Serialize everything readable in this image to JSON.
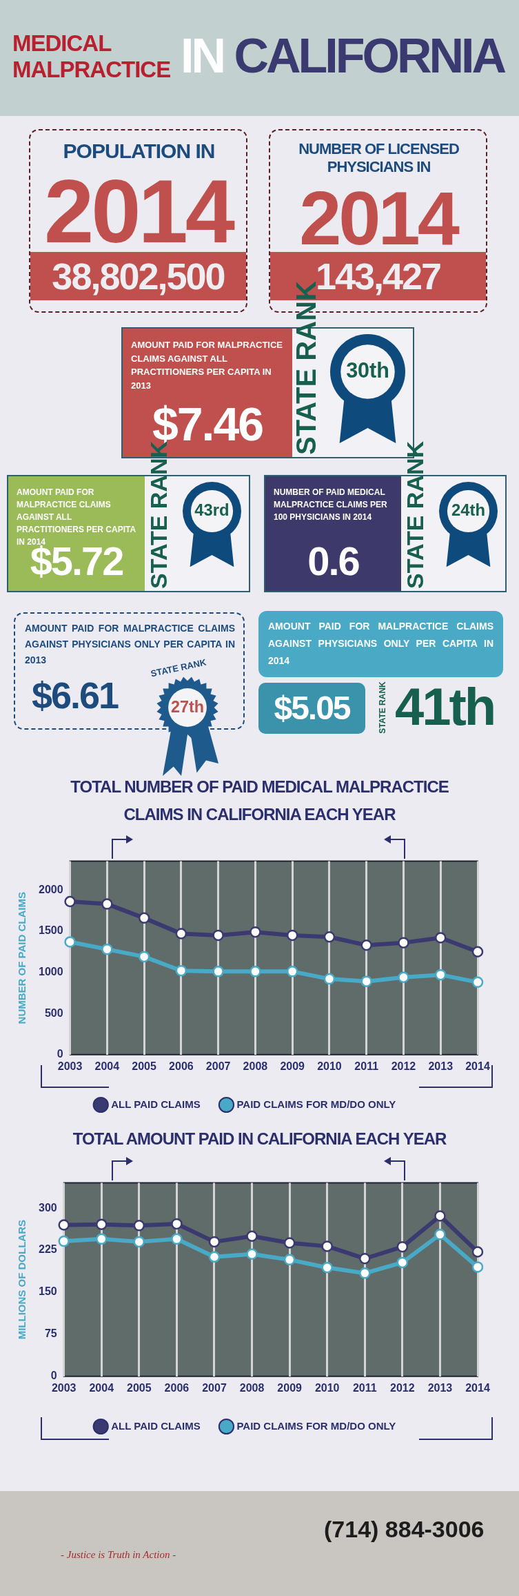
{
  "chart_data": [
    {
      "type": "other",
      "title": "MEDICAL MALPRACTICE IN CALIFORNIA"
    },
    {
      "type": "other",
      "title": "POPULATION IN",
      "subtitle": "2014",
      "annotations": [
        "38,802,500"
      ]
    },
    {
      "type": "other",
      "title": "NUMBER OF LICENSED PHYSICIANS IN",
      "subtitle": "2014",
      "annotations": [
        "143,427"
      ]
    },
    {
      "type": "other",
      "title": "AMOUNT PAID FOR MALPRACTICE CLAIMS AGAINST ALL PRACTITIONERS PER CAPITA IN 2013",
      "annotations": [
        "$7.46",
        "STATE RANK",
        "30th"
      ]
    },
    {
      "type": "other",
      "title": "AMOUNT PAID FOR MALPRACTICE CLAIMS AGAINST ALL PRACTITIONERS PER CAPITA IN 2014",
      "annotations": [
        "$5.72",
        "STATE RANK",
        "43rd"
      ]
    },
    {
      "type": "other",
      "title": "NUMBER OF PAID MEDICAL MALPRACTICE CLAIMS PER 100 PHYSICIANS IN 2014",
      "annotations": [
        "0.6",
        "STATE RANK",
        "24th"
      ]
    },
    {
      "type": "other",
      "title": "AMOUNT PAID FOR MALPRACTICE CLAIMS AGAINST PHYSICIANS ONLY PER CAPITA IN 2013",
      "annotations": [
        "$6.61",
        "STATE RANK",
        "27th"
      ]
    },
    {
      "type": "other",
      "title": "AMOUNT PAID FOR MALPRACTICE CLAIMS AGAINST PHYSICIANS ONLY PER CAPITA IN 2014",
      "annotations": [
        "$5.05",
        "STATE RANK",
        "41th"
      ]
    },
    {
      "type": "line",
      "title": "TOTAL NUMBER OF PAID MEDICAL MALPRACTICE CLAIMS IN CALIFORNIA EACH YEAR",
      "ylabel": "NUMBER OF PAID CLAIMS",
      "categories": [
        "2003",
        "2004",
        "2005",
        "2006",
        "2007",
        "2008",
        "2009",
        "2010",
        "2011",
        "2012",
        "2013",
        "2014"
      ],
      "ylim": [
        0,
        2350
      ],
      "yticks": [
        0,
        500,
        1000,
        1500,
        2000
      ],
      "grid": "x",
      "legend": "bottom",
      "marker": "circle",
      "line_style": "solid",
      "series": [
        {
          "name": "ALL PAID CLAIMS",
          "color": "#3b3a70",
          "values": [
            1860,
            1830,
            1660,
            1470,
            1450,
            1490,
            1450,
            1430,
            1330,
            1360,
            1420,
            1250
          ]
        },
        {
          "name": "PAID CLAIMS FOR MD/DO ONLY",
          "color": "#48aac6",
          "values": [
            1370,
            1280,
            1190,
            1020,
            1010,
            1010,
            1010,
            920,
            890,
            940,
            970,
            880
          ]
        }
      ]
    },
    {
      "type": "line",
      "title": "TOTAL AMOUNT PAID IN CALIFORNIA EACH YEAR",
      "ylabel": "MILLIONS OF DOLLARS",
      "categories": [
        "2003",
        "2004",
        "2005",
        "2006",
        "2007",
        "2008",
        "2009",
        "2010",
        "2011",
        "2012",
        "2013",
        "2014"
      ],
      "ylim": [
        0,
        345
      ],
      "yticks": [
        0,
        75,
        150,
        225,
        300
      ],
      "grid": "x",
      "legend": "bottom",
      "marker": "circle",
      "line_style": "solid",
      "series": [
        {
          "name": "ALL PAID CLAIMS",
          "color": "#3b3a70",
          "values": [
            270,
            271,
            269,
            272,
            240,
            250,
            238,
            232,
            210,
            231,
            286,
            222
          ]
        },
        {
          "name": "PAID CLAIMS FOR MD/DO ONLY",
          "color": "#48aac6",
          "values": [
            241,
            245,
            240,
            245,
            213,
            218,
            208,
            194,
            184,
            203,
            253,
            195
          ]
        }
      ]
    },
    {
      "type": "other",
      "annotations": [
        "- Justice is Truth in Action -",
        "(714) 884-3006"
      ]
    }
  ]
}
